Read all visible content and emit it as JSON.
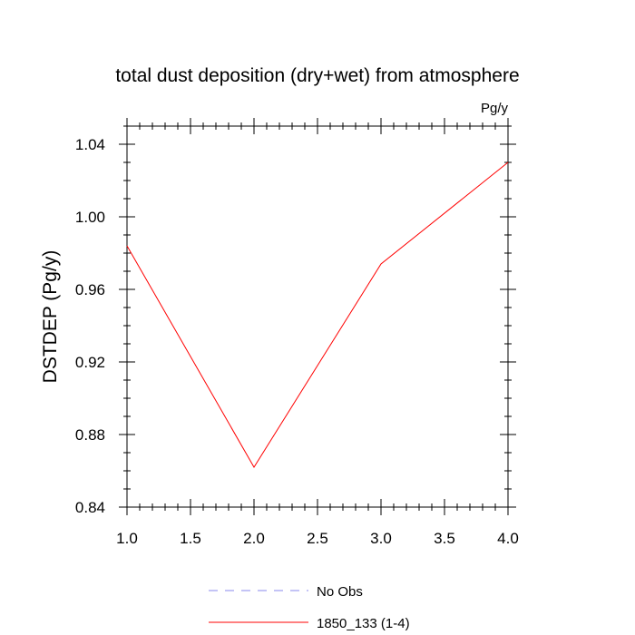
{
  "chart_data": {
    "type": "line",
    "title": "total dust deposition (dry+wet) from atmosphere",
    "units_label": "Pg/y",
    "ylabel": "DSTDEP  (Pg/y)",
    "xlabel": "",
    "xlim": [
      1.0,
      4.0
    ],
    "ylim": [
      0.84,
      1.05
    ],
    "x_ticks": [
      1.0,
      1.5,
      2.0,
      2.5,
      3.0,
      3.5,
      4.0
    ],
    "x_tick_labels": [
      "1.0",
      "1.5",
      "2.0",
      "2.5",
      "3.0",
      "3.5",
      "4.0"
    ],
    "y_ticks": [
      0.84,
      0.88,
      0.92,
      0.96,
      1.0,
      1.04
    ],
    "y_tick_labels": [
      "0.84",
      "0.88",
      "0.92",
      "0.96",
      "1.00",
      "1.04"
    ],
    "grid": false,
    "legend_position": "bottom-center",
    "series": [
      {
        "name": "No Obs",
        "color": "#8888ee",
        "dashed": true,
        "x": [],
        "y": []
      },
      {
        "name": "1850_133 (1-4)",
        "color": "#ff0000",
        "dashed": false,
        "x": [
          1.0,
          2.0,
          3.0,
          4.0
        ],
        "y": [
          0.984,
          0.862,
          0.974,
          1.03
        ]
      }
    ]
  }
}
